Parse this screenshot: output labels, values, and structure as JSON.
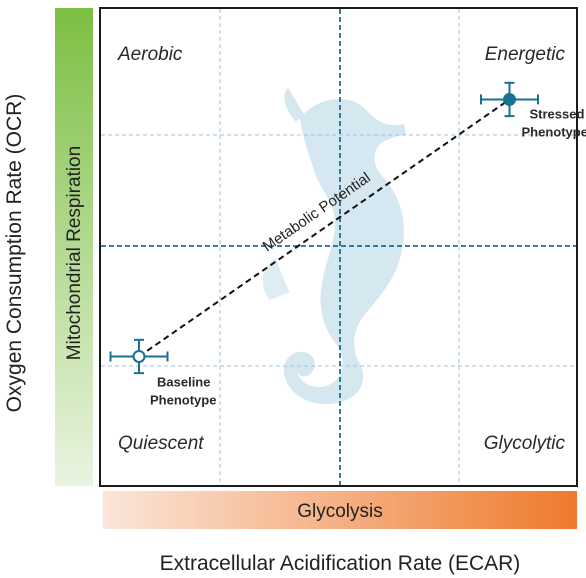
{
  "chart_data": {
    "type": "scatter",
    "title": "",
    "xlabel": "Extracellular Acidification Rate (ECAR)",
    "ylabel": "Oxygen Consumption Rate (OCR)",
    "x_bar_label": "Glycolysis",
    "y_bar_label": "Mitochondrial Respiration",
    "xlim": [
      0,
      1
    ],
    "ylim": [
      0,
      1
    ],
    "grid": true,
    "quadrants": {
      "top_left": "Aerobic",
      "top_right": "Energetic",
      "bottom_left": "Quiescent",
      "bottom_right": "Glycolytic"
    },
    "points": [
      {
        "label_line1": "Baseline",
        "label_line2": "Phenotype",
        "x": 0.08,
        "y": 0.27,
        "x_err": 0.06,
        "y_err": 0.035,
        "filled": false
      },
      {
        "label_line1": "Stressed",
        "label_line2": "Phenotype",
        "x": 0.86,
        "y": 0.81,
        "x_err": 0.06,
        "y_err": 0.035,
        "filled": true
      }
    ],
    "connector_label": "Metabolic Potential",
    "colors": {
      "point": "#1a7090",
      "grid_major": "#1a7090",
      "grid_minor": "#9fc3df",
      "seahorse": "#d3e6ef",
      "y_bar_top": "#7cbf42",
      "y_bar_bottom": "#eaf4e1",
      "x_bar_left": "#fbe6d9",
      "x_bar_right": "#ef7a2c"
    }
  }
}
